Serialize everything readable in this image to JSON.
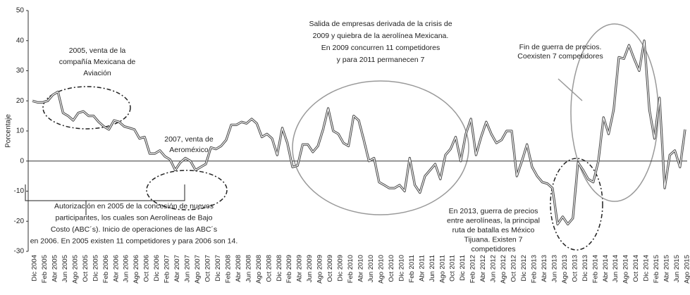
{
  "chart_data": {
    "type": "line",
    "ylabel": "Porcentaje",
    "categories": [
      "Dic 2004",
      null,
      "Feb 2005",
      null,
      "Abr 2005",
      null,
      "Jun 2005",
      null,
      "Ago 2005",
      null,
      "Oct 2005",
      null,
      "Dic 2005",
      null,
      "Feb 2006",
      null,
      "Abr 2006",
      null,
      "Jun 2006",
      null,
      "Ago 2006",
      null,
      "Oct 2006",
      null,
      "Dic 2006",
      null,
      "Feb 2007",
      null,
      "Abr 2007",
      null,
      "Jun 2007",
      null,
      "Ago 2007",
      null,
      "Oct 2007",
      null,
      "Dic 2007",
      null,
      "Feb 2008",
      null,
      "Abr 2008",
      null,
      "Jun 2008",
      null,
      "Ago 2008",
      null,
      "Oct 2008",
      null,
      "Dic 2008",
      null,
      "Feb 2009",
      null,
      "Abr 2009",
      null,
      "Jun 2009",
      null,
      "Ago 2009",
      null,
      "Oct 2009",
      null,
      "Dic 2009",
      null,
      "Feb 2010",
      null,
      "Abr 2010",
      null,
      "Jun 2010",
      null,
      "Ago 2010",
      null,
      "Oct 2010",
      null,
      "Dic 2010",
      null,
      "Feb 2011",
      null,
      "Abr 2011",
      null,
      "Jun 2011",
      null,
      "Ago 2011",
      null,
      "Oct 2011",
      null,
      "Dic 2011",
      null,
      "Feb 2012",
      null,
      "Abr 2012",
      null,
      "Jun 2012",
      null,
      "Ago 2012",
      null,
      "Oct 2012",
      null,
      "Dic 2012",
      null,
      "Feb 2013",
      null,
      "Abr 2013",
      null,
      "Jun 2013",
      null,
      "Ago 2013",
      null,
      "Oct 2013",
      null,
      "Dic 2013",
      null,
      "Feb 2014",
      null,
      "Abr 2014",
      null,
      "Jun 2014",
      null,
      "Ago 2014",
      null,
      "Oct 2014",
      null,
      "Dic 2014",
      null,
      "Feb 2015",
      null,
      "Abr 2015",
      null,
      "Jun 2015",
      null,
      "Ago 2015"
    ],
    "values": [
      20,
      19.5,
      19.5,
      20,
      22,
      23,
      16,
      15,
      13.5,
      16,
      16.5,
      15,
      15,
      13,
      11.5,
      10.5,
      13.5,
      13,
      11.5,
      11,
      10.5,
      7.5,
      8,
      2.5,
      2.5,
      3.5,
      1.5,
      0.5,
      -3,
      -0.5,
      1,
      0,
      -3,
      -2,
      -1,
      4.5,
      4,
      5,
      7,
      12,
      12,
      13,
      12.5,
      14,
      12.5,
      8,
      9,
      7.5,
      2,
      11,
      6,
      -2,
      -1.5,
      5.5,
      5.5,
      3,
      5,
      10.5,
      17.5,
      10,
      9,
      6,
      5,
      15,
      13.5,
      7,
      0,
      1,
      -7,
      -8,
      -9,
      -9,
      -8,
      -10,
      1,
      -8,
      -10.5,
      -5,
      -3,
      -1,
      -6,
      2,
      4,
      8,
      0,
      9,
      14,
      2,
      8,
      13,
      9,
      6,
      7,
      10,
      10,
      -5,
      0,
      5.5,
      -2,
      -5,
      -7,
      -7.5,
      -9,
      -21,
      -18.5,
      -21,
      -19,
      -0.5,
      -3,
      -6,
      -7,
      0,
      14.5,
      9,
      17,
      34.5,
      34,
      38.5,
      34,
      30,
      40,
      17,
      7.5,
      21,
      -9,
      2,
      3.5,
      -2,
      10.5
    ],
    "color": "#444444",
    "ylim": [
      -30,
      50
    ],
    "yticks": [
      -30,
      -20,
      -10,
      0,
      10,
      20,
      30,
      40,
      50
    ],
    "annotations": [
      [
        "2005, venta de la",
        "compañía Mexicana de",
        "Aviación"
      ],
      [
        "2007, venta de",
        "Aeroméxico"
      ],
      [
        "Autorización en 2005 de la concesión de nuevos",
        "participantes, los cuales son Aerolíneas de Bajo",
        "Costo (ABC´s). Inicio de operaciones de las ABC´s",
        "en 2006. En 2005 existen 11 competidores y para 2006 son 14."
      ],
      [
        "Salida de empresas derivada de la crisis de",
        "2009 y quiebra de la aerolínea Mexicana.",
        "En 2009 concurren 11 competidores",
        "y para 2011 permanecen 7"
      ],
      [
        "En 2013, guerra de precios",
        "entre aerolíneas, la principal",
        "ruta de batalla es México",
        "Tijuana. Existen 7",
        "competidores"
      ],
      [
        "Fin de guerra de precios.",
        "Coexisten 7 competidores"
      ]
    ]
  }
}
